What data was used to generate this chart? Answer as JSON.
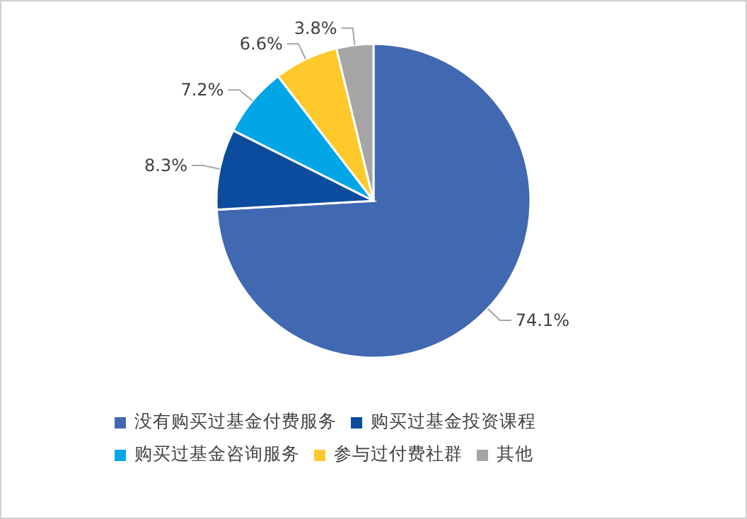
{
  "chart_data": {
    "type": "pie",
    "categories": [
      "没有购买过基金付费服务",
      "购买过基金投资课程",
      "购买过基金咨询服务",
      "参与过付费社群",
      "其他"
    ],
    "values": [
      74.1,
      8.3,
      7.2,
      6.6,
      3.8
    ],
    "colors": [
      "#4169b1",
      "#0b4c9e",
      "#00a6e6",
      "#ffc92b",
      "#a5a5a5"
    ],
    "value_labels": [
      "74.1%",
      "8.3%",
      "7.2%",
      "6.6%",
      "3.8%"
    ],
    "legend": "bottom"
  }
}
